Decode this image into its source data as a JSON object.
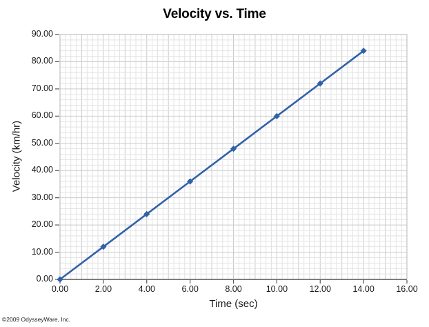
{
  "page": {
    "background": "#ffffff",
    "footer": {
      "copyright": "©2009 OdysseyWare, Inc."
    }
  },
  "chart_data": {
    "type": "line",
    "title": "Velocity vs. Time",
    "xlabel": "Time (sec)",
    "ylabel": "Velocity (km/hr)",
    "series": [
      {
        "name": "Velocity",
        "x": [
          0,
          2,
          4,
          6,
          8,
          10,
          12,
          14
        ],
        "y": [
          0,
          12,
          24,
          36,
          48,
          60,
          72,
          84
        ]
      }
    ],
    "xlim": [
      0,
      16
    ],
    "ylim": [
      0,
      90
    ],
    "x_ticks": {
      "values": [
        0,
        2,
        4,
        6,
        8,
        10,
        12,
        14,
        16
      ],
      "labels": [
        "0.00",
        "2.00",
        "4.00",
        "6.00",
        "8.00",
        "10.00",
        "12.00",
        "14.00",
        "16.00"
      ]
    },
    "y_ticks": {
      "values": [
        0,
        10,
        20,
        30,
        40,
        50,
        60,
        70,
        80,
        90
      ],
      "labels": [
        "0.00",
        "10.00",
        "20.00",
        "30.00",
        "40.00",
        "50.00",
        "60.00",
        "70.00",
        "80.00",
        "90.00"
      ]
    },
    "grid": {
      "on": true,
      "x_minor_step": 0.25,
      "x_major_step": 1,
      "y_minor_step": 2,
      "y_major_step": 10
    },
    "marker": "diamond",
    "legend": null,
    "colors": {
      "line": "#3161A9",
      "marker": "#3161A9",
      "grid_minor": "#e3e3e3",
      "grid_major": "#cbcbcb",
      "border": "#b5b5b5",
      "axis": "#555555",
      "text": "#1a1a1a"
    }
  }
}
